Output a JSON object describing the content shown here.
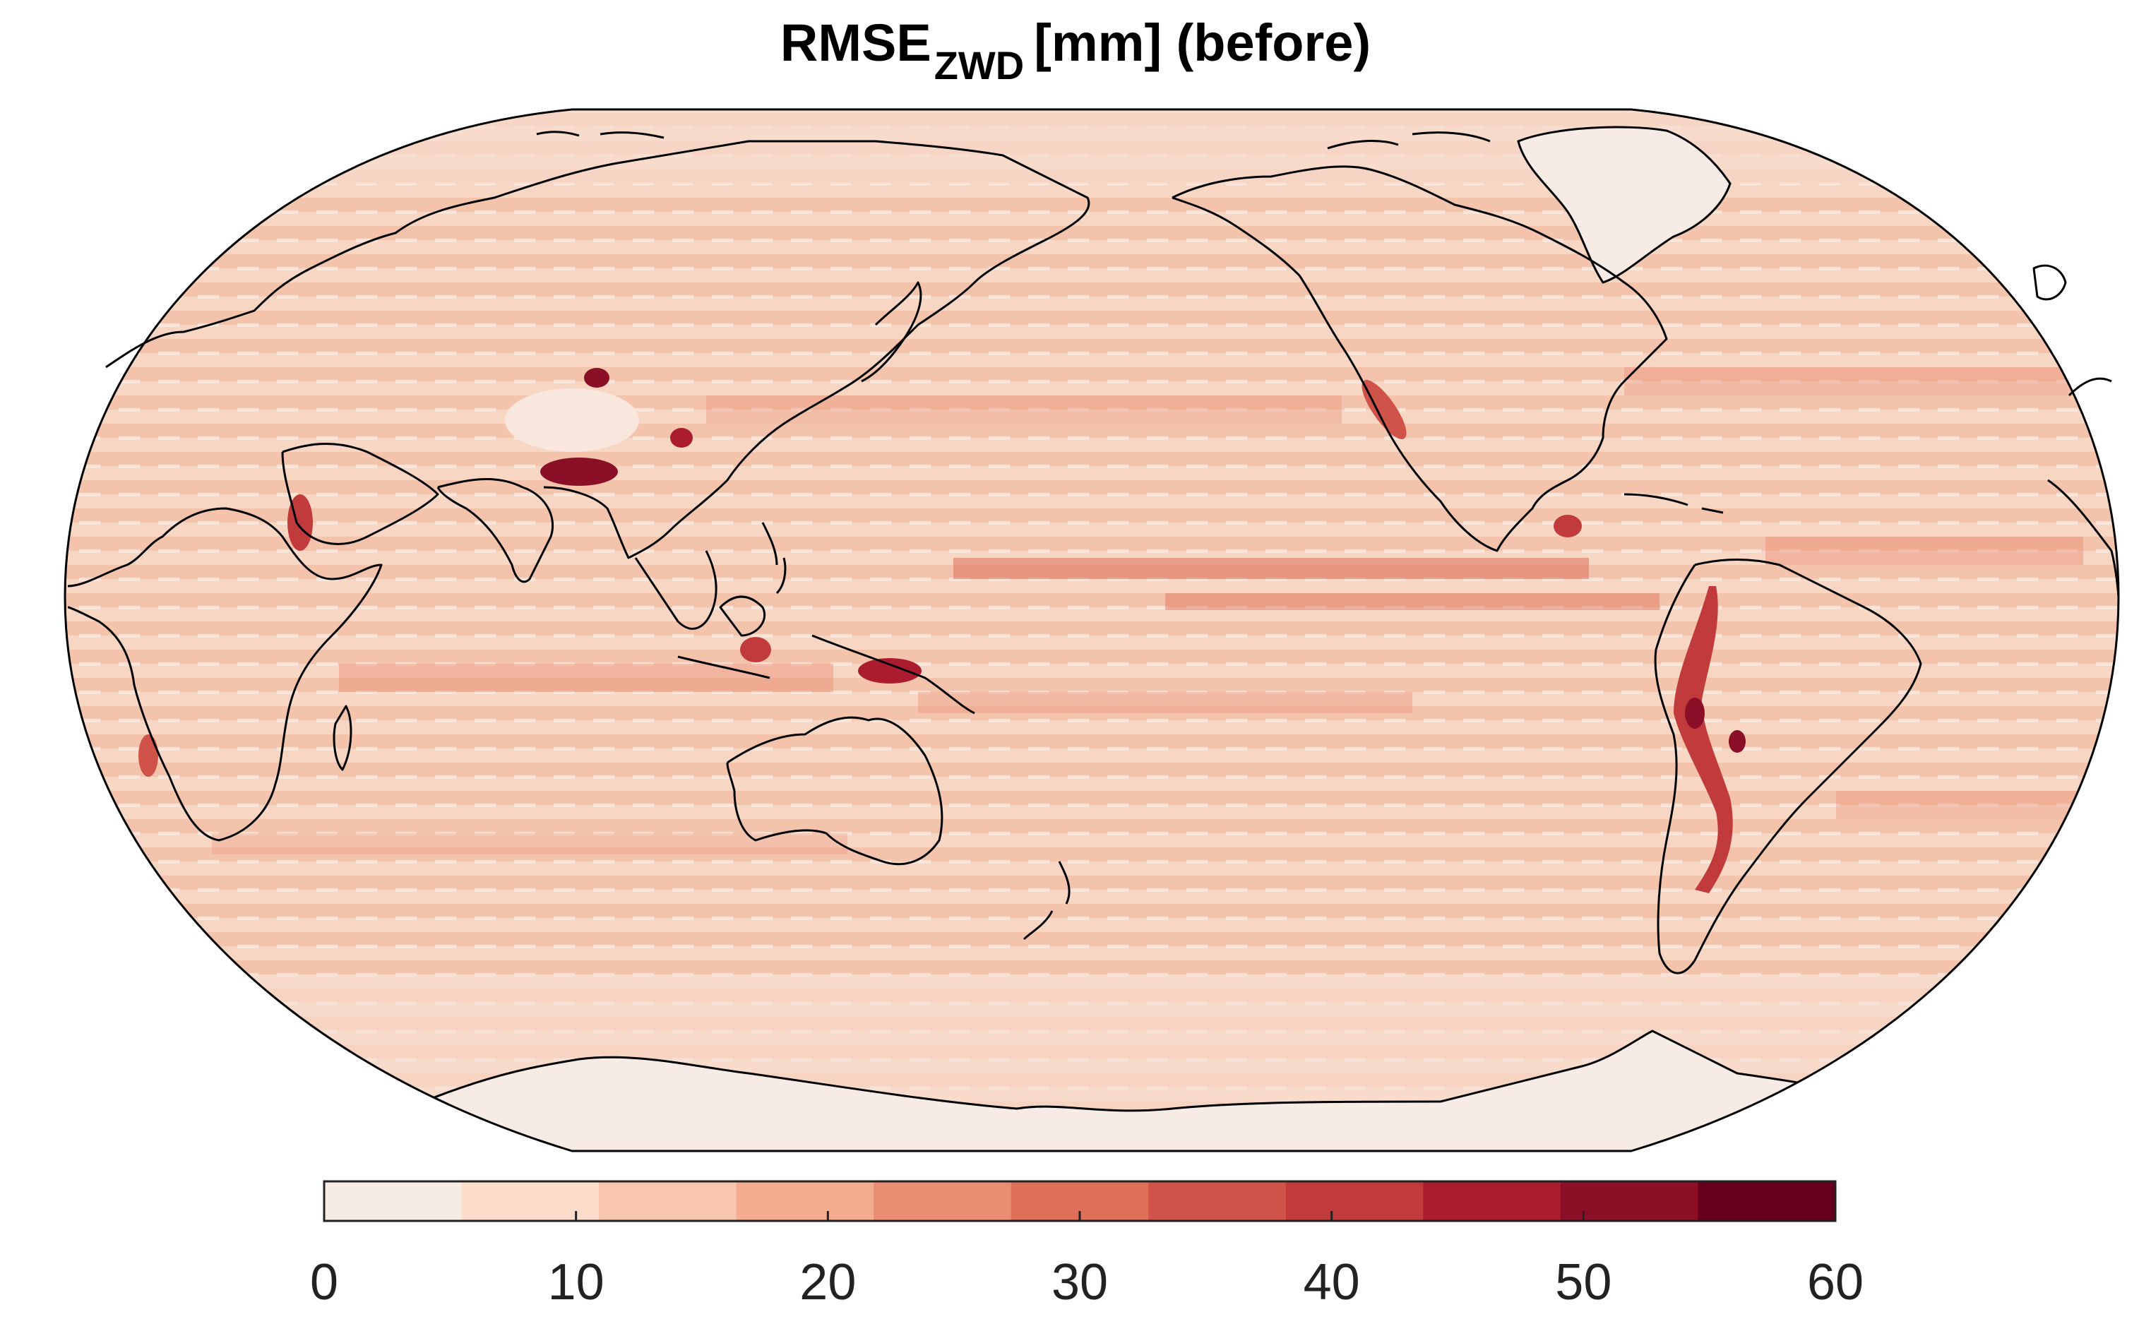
{
  "title": {
    "main": "RMSE",
    "subscript": "ZWD",
    "rest": "[mm] (before)"
  },
  "colorbar": {
    "vmin": 0,
    "vmax": 60,
    "ticks": [
      "0",
      "10",
      "20",
      "30",
      "40",
      "50",
      "60"
    ],
    "colors": [
      "#f6ebe5",
      "#fbdccb",
      "#f8c6ae",
      "#f3ac8e",
      "#e98e73",
      "#de7059",
      "#d05349",
      "#c13b3d",
      "#ac1c2f",
      "#8b0f26",
      "#67001f"
    ]
  },
  "map": {
    "projection": "Robinson",
    "central_longitude": 180,
    "background_colors": [
      "#f4c8b2",
      "#f9d9c8",
      "#f6ebe5"
    ],
    "hotspot_colors": [
      "#c13b3d",
      "#8b0f26",
      "#de7059"
    ],
    "coastline_color": "#000000"
  }
}
